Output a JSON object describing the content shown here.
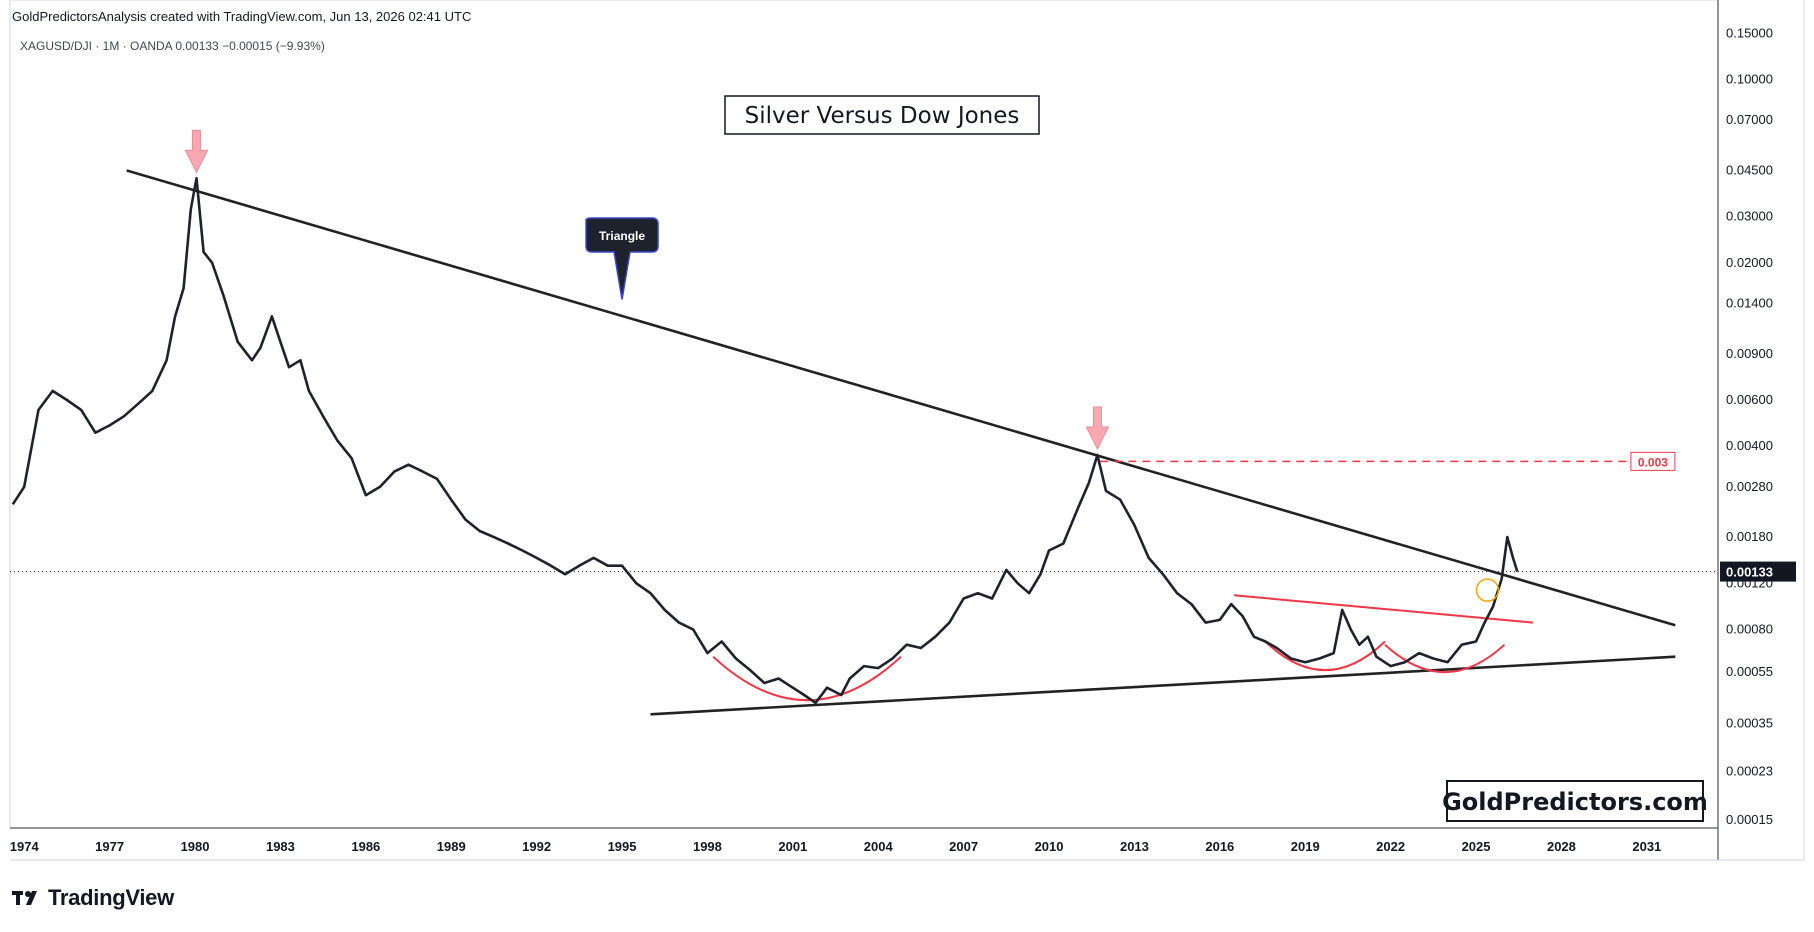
{
  "header": {
    "attribution": "GoldPredictorsAnalysis created with TradingView.com, Jun 13, 2026 02:41 UTC",
    "symbol_line": "XAGUSD/DJI · 1M · OANDA  0.00133  −0.00015 (−9.93%)"
  },
  "footer": {
    "brand": "TradingView"
  },
  "chart_data": {
    "type": "line",
    "title": "Silver Versus Dow Jones",
    "watermark": "GoldPredictors.com",
    "symbol": "XAGUSD/DJI",
    "interval": "1M",
    "exchange": "OANDA",
    "y_scale": "log",
    "ylim": [
      0.00014,
      0.16
    ],
    "xlim": [
      1973.5,
      2033.5
    ],
    "y_ticks": [
      "0.15000",
      "0.10000",
      "0.07000",
      "0.04500",
      "0.03000",
      "0.02000",
      "0.01400",
      "0.00900",
      "0.00600",
      "0.00400",
      "0.00280",
      "0.00180",
      "0.00120",
      "0.00080",
      "0.00055",
      "0.00035",
      "0.00023",
      "0.00015"
    ],
    "x_ticks": [
      "1974",
      "1977",
      "1980",
      "1983",
      "1986",
      "1989",
      "1992",
      "1995",
      "1998",
      "2001",
      "2004",
      "2007",
      "2010",
      "2013",
      "2016",
      "2019",
      "2022",
      "2025",
      "2028",
      "2031"
    ],
    "last_price": "0.00133",
    "series": [
      {
        "x": [
          1973.6,
          1974.0,
          1974.5,
          1975.0,
          1975.5,
          1976.0,
          1976.5,
          1977.0,
          1977.5,
          1978.0,
          1978.5,
          1979.0,
          1979.3,
          1979.6,
          1979.85,
          1980.05,
          1980.3,
          1980.6,
          1981.0,
          1981.5,
          1982.0,
          1982.3,
          1982.7,
          1983.0,
          1983.3,
          1983.7,
          1984.0,
          1984.5,
          1985.0,
          1985.5,
          1986.0,
          1986.5,
          1987.0,
          1987.5,
          1988.0,
          1988.5,
          1989.0,
          1989.5,
          1990.0,
          1990.5,
          1991.0,
          1991.5,
          1992.0,
          1992.5,
          1993.0,
          1993.5,
          1994.0,
          1994.5,
          1995.0,
          1995.5,
          1996.0,
          1996.5,
          1997.0,
          1997.5,
          1998.0,
          1998.5,
          1999.0,
          1999.5,
          2000.0,
          2000.5,
          2001.0,
          2001.4,
          2001.8,
          2002.2,
          2002.7,
          2003.0,
          2003.5,
          2004.0,
          2004.5,
          2005.0,
          2005.5,
          2006.0,
          2006.5,
          2007.0,
          2007.5,
          2008.0,
          2008.5,
          2008.9,
          2009.3,
          2009.7,
          2010.0,
          2010.5,
          2011.0,
          2011.4,
          2011.7,
          2012.0,
          2012.5,
          2013.0,
          2013.5,
          2014.0,
          2014.5,
          2015.0,
          2015.5,
          2016.0,
          2016.4,
          2016.8,
          2017.2,
          2017.6,
          2018.0,
          2018.5,
          2019.0,
          2019.5,
          2020.0,
          2020.3,
          2020.6,
          2020.9,
          2021.2,
          2021.5,
          2022.0,
          2022.5,
          2023.0,
          2023.5,
          2024.0,
          2024.5,
          2025.0,
          2025.3,
          2025.6,
          2025.9,
          2026.1,
          2026.3,
          2026.45
        ],
        "y": [
          0.0024,
          0.0028,
          0.0055,
          0.0065,
          0.006,
          0.0055,
          0.0045,
          0.0048,
          0.0052,
          0.0058,
          0.0065,
          0.0085,
          0.0125,
          0.016,
          0.032,
          0.042,
          0.022,
          0.02,
          0.015,
          0.01,
          0.0085,
          0.0095,
          0.0125,
          0.01,
          0.008,
          0.0085,
          0.0065,
          0.0052,
          0.0042,
          0.0036,
          0.0026,
          0.0028,
          0.0032,
          0.0034,
          0.0032,
          0.003,
          0.0025,
          0.0021,
          0.0019,
          0.0018,
          0.0017,
          0.0016,
          0.0015,
          0.0014,
          0.0013,
          0.0014,
          0.0015,
          0.0014,
          0.0014,
          0.0012,
          0.0011,
          0.00095,
          0.00085,
          0.0008,
          0.00065,
          0.00072,
          0.00062,
          0.00056,
          0.0005,
          0.00052,
          0.00048,
          0.00045,
          0.00042,
          0.00048,
          0.00045,
          0.00052,
          0.00058,
          0.00057,
          0.00062,
          0.0007,
          0.00068,
          0.00075,
          0.00085,
          0.00105,
          0.0011,
          0.00105,
          0.00135,
          0.0012,
          0.0011,
          0.0013,
          0.0016,
          0.0017,
          0.0023,
          0.0029,
          0.0037,
          0.0027,
          0.0025,
          0.002,
          0.0015,
          0.0013,
          0.0011,
          0.001,
          0.00085,
          0.00087,
          0.001,
          0.0009,
          0.00075,
          0.00072,
          0.00068,
          0.00062,
          0.0006,
          0.00062,
          0.00065,
          0.00095,
          0.0008,
          0.0007,
          0.00075,
          0.00063,
          0.00058,
          0.0006,
          0.00065,
          0.00062,
          0.0006,
          0.0007,
          0.00072,
          0.00085,
          0.00098,
          0.00125,
          0.0018,
          0.0015,
          0.00133
        ]
      }
    ],
    "trendlines": [
      {
        "x": [
          1977.6,
          2032.0
        ],
        "y": [
          0.045,
          0.00083
        ],
        "color": "#222222"
      },
      {
        "x": [
          1996.0,
          2032.0
        ],
        "y": [
          0.00038,
          0.00063
        ],
        "color": "#222222"
      },
      {
        "x": [
          2016.5,
          2027.0
        ],
        "y": [
          0.00108,
          0.00085
        ],
        "color": "#f23645"
      }
    ],
    "level_line": {
      "x_start": 2011.8,
      "x_end": 2030.3,
      "y": 0.0035,
      "label": "0.003",
      "color": "#f23645"
    },
    "arcs": [
      {
        "x": [
          1998.2,
          2004.8
        ],
        "y_top": 0.00063,
        "y_bottom": 0.00043
      },
      {
        "x": [
          2017.6,
          2021.8
        ],
        "y_top": 0.00072,
        "y_bottom": 0.00056
      },
      {
        "x": [
          2021.8,
          2026.0
        ],
        "y_top": 0.0007,
        "y_bottom": 0.00055
      }
    ],
    "peak_markers": [
      {
        "x": 1980.05,
        "y": 0.042
      },
      {
        "x": 2011.7,
        "y": 0.0037
      }
    ],
    "breakout_marker": {
      "x": 2025.4,
      "y": 0.00113,
      "color": "#f7a600"
    },
    "callout": {
      "label": "Triangle",
      "x": 1995.0,
      "y": 0.0145
    },
    "colors": {
      "price": "#1e222d",
      "grid_border": "#d1d4dc",
      "accent_red": "#f23645",
      "marker_pink": "#f7a8b0"
    }
  }
}
